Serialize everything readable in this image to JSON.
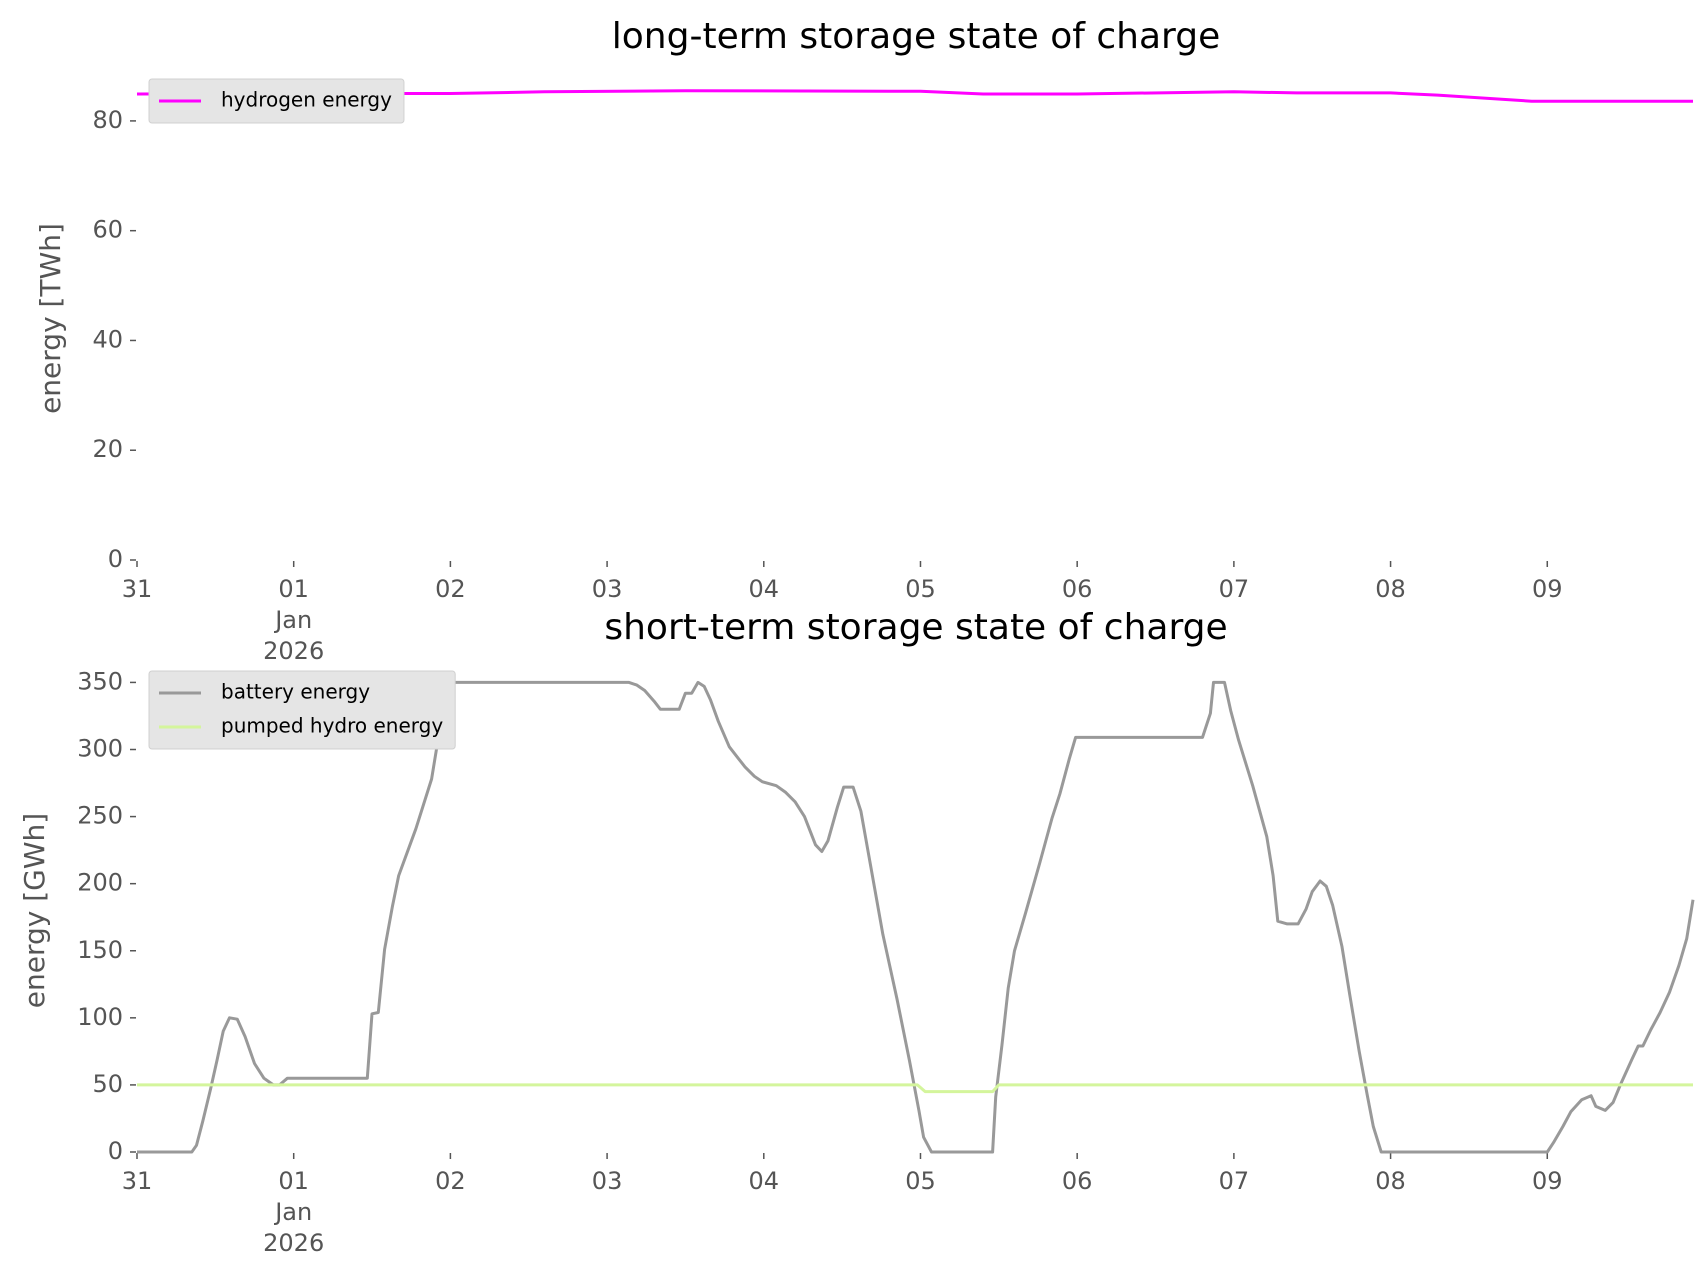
{
  "chart_data": [
    {
      "type": "line",
      "title": "long-term storage state of charge",
      "ylabel": "energy [TWh]",
      "xlim": [
        0,
        9.93
      ],
      "ylim": [
        0,
        88
      ],
      "xticks": [
        {
          "value": 0,
          "label": "31"
        },
        {
          "value": 1,
          "label": "01\nJan\n2026"
        },
        {
          "value": 2,
          "label": "02"
        },
        {
          "value": 3,
          "label": "03"
        },
        {
          "value": 4,
          "label": "04"
        },
        {
          "value": 5,
          "label": "05"
        },
        {
          "value": 6,
          "label": "06"
        },
        {
          "value": 7,
          "label": "07"
        },
        {
          "value": 8,
          "label": "08"
        },
        {
          "value": 9,
          "label": "09"
        }
      ],
      "yticks": [
        0,
        20,
        40,
        60,
        80
      ],
      "legend": "upper left",
      "series": [
        {
          "name": "hydrogen energy",
          "color": "#ff00ff",
          "x": [
            0,
            1,
            2,
            2.6,
            3.5,
            5,
            5.4,
            6,
            7,
            7.4,
            8,
            8.3,
            8.9,
            9.93
          ],
          "values": [
            84.9,
            85.0,
            85.0,
            85.3,
            85.5,
            85.4,
            84.9,
            84.9,
            85.3,
            85.1,
            85.1,
            84.7,
            83.6,
            83.6
          ]
        }
      ]
    },
    {
      "type": "line",
      "title": "short-term storage state of charge",
      "ylabel": "energy [GWh]",
      "xlim": [
        0,
        9.93
      ],
      "ylim": [
        0,
        360
      ],
      "xticks": [
        {
          "value": 0,
          "label": "31"
        },
        {
          "value": 1,
          "label": "01\nJan\n2026"
        },
        {
          "value": 2,
          "label": "02"
        },
        {
          "value": 3,
          "label": "03"
        },
        {
          "value": 4,
          "label": "04"
        },
        {
          "value": 5,
          "label": "05"
        },
        {
          "value": 6,
          "label": "06"
        },
        {
          "value": 7,
          "label": "07"
        },
        {
          "value": 8,
          "label": "08"
        },
        {
          "value": 9,
          "label": "09"
        }
      ],
      "yticks": [
        0,
        50,
        100,
        150,
        200,
        250,
        300,
        350
      ],
      "legend": "upper left",
      "series": [
        {
          "name": "battery energy",
          "color": "#999999",
          "x": [
            0,
            0.35,
            0.38,
            0.42,
            0.47,
            0.51,
            0.55,
            0.59,
            0.64,
            0.69,
            0.75,
            0.81,
            0.87,
            0.91,
            0.96,
            1.01,
            1.47,
            1.5,
            1.54,
            1.58,
            1.63,
            1.67,
            1.78,
            1.88,
            1.95,
            2.0,
            3.14,
            3.19,
            3.24,
            3.3,
            3.34,
            3.46,
            3.5,
            3.54,
            3.58,
            3.62,
            3.66,
            3.71,
            3.78,
            3.84,
            3.88,
            3.94,
            3.99,
            4.08,
            4.14,
            4.2,
            4.26,
            4.33,
            4.37,
            4.41,
            4.47,
            4.51,
            4.57,
            4.62,
            4.67,
            4.76,
            4.85,
            4.93,
            4.99,
            5.02,
            5.07,
            5.46,
            5.48,
            5.52,
            5.56,
            5.6,
            5.67,
            5.76,
            5.84,
            5.89,
            5.95,
            5.99,
            6.8,
            6.85,
            6.87,
            6.94,
            6.98,
            7.03,
            7.12,
            7.21,
            7.25,
            7.28,
            7.34,
            7.41,
            7.46,
            7.5,
            7.55,
            7.59,
            7.63,
            7.69,
            7.74,
            7.8,
            7.85,
            7.89,
            7.94,
            9.0,
            9.04,
            9.1,
            9.15,
            9.22,
            9.28,
            9.31,
            9.37,
            9.42,
            9.47,
            9.54,
            9.58,
            9.61,
            9.66,
            9.72,
            9.78,
            9.84,
            9.89,
            9.93
          ],
          "values": [
            0,
            0,
            5,
            23,
            47,
            68,
            90,
            100,
            99,
            86,
            66,
            55,
            50,
            50,
            55,
            55,
            55,
            103,
            104,
            151,
            183,
            206,
            241,
            278,
            328,
            350,
            350,
            348,
            344,
            336,
            330,
            330,
            342,
            342,
            350,
            347,
            337,
            321,
            302,
            293,
            287,
            280,
            276,
            273,
            268,
            261,
            250,
            229,
            224,
            232,
            257,
            272,
            272,
            254,
            221,
            162,
            114,
            68,
            31,
            11,
            0,
            0,
            41,
            80,
            122,
            150,
            178,
            215,
            249,
            267,
            293,
            309,
            309,
            327,
            350,
            350,
            329,
            307,
            273,
            235,
            206,
            172,
            170,
            170,
            181,
            194,
            202,
            198,
            184,
            153,
            117,
            75,
            43,
            19,
            0,
            0,
            7,
            19,
            30,
            39,
            42,
            34,
            31,
            37,
            51,
            69,
            79,
            79,
            91,
            104,
            119,
            139,
            159,
            188
          ]
        },
        {
          "name": "pumped hydro energy",
          "color": "#d4f59c",
          "x": [
            0,
            4.98,
            5.03,
            5.46,
            5.5,
            9.93
          ],
          "values": [
            50,
            50,
            45,
            45,
            50,
            50
          ]
        }
      ]
    }
  ]
}
